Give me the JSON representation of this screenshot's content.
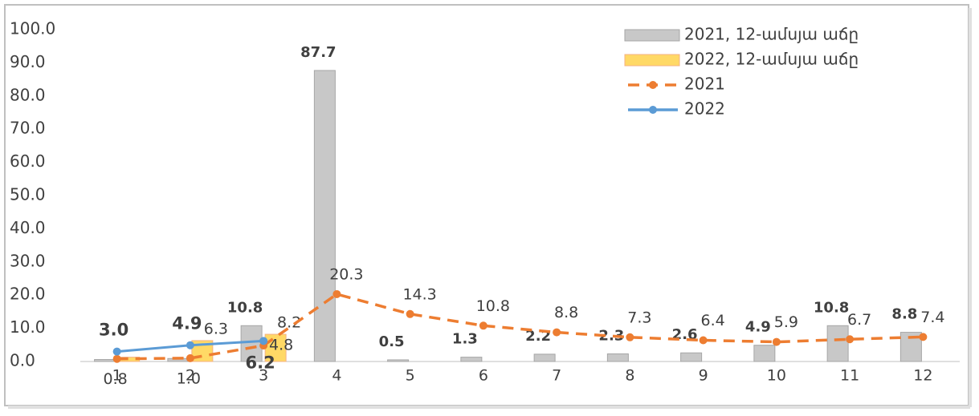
{
  "chart_data": {
    "type": "bar",
    "categories": [
      "1",
      "2",
      "3",
      "4",
      "5",
      "6",
      "7",
      "8",
      "9",
      "10",
      "11",
      "12"
    ],
    "series": [
      {
        "name": "2021, 12-ամսյա աճը",
        "kind": "bar",
        "color": "#c8c8c8",
        "label_color": "#404040",
        "values": [
          0.6,
          0.9,
          10.8,
          87.7,
          0.5,
          1.3,
          2.2,
          2.3,
          2.6,
          4.9,
          10.8,
          8.8
        ],
        "value_labels": [
          null,
          null,
          "10.8",
          "87.7",
          "0.5",
          "1.3",
          "2.2",
          "2.3",
          "2.6",
          "4.9",
          "10.8",
          "8.8"
        ]
      },
      {
        "name": "2022, 12-ամսյա աճը",
        "kind": "bar",
        "color": "#ffd966",
        "label_color": "#404040",
        "values": [
          1.3,
          6.3,
          8.2,
          null,
          null,
          null,
          null,
          null,
          null,
          null,
          null,
          null
        ],
        "value_labels": [
          null,
          "6.3",
          "8.2",
          null,
          null,
          null,
          null,
          null,
          null,
          null,
          null,
          null
        ]
      },
      {
        "name": "2021",
        "kind": "line",
        "dashed": true,
        "color": "#ed7d31",
        "label_color": "#ed7d31",
        "values": [
          0.8,
          1.0,
          4.8,
          20.3,
          14.3,
          10.8,
          8.8,
          7.3,
          6.4,
          5.9,
          6.7,
          7.4
        ],
        "value_labels": [
          "0.8",
          "1.0",
          "4.8",
          "20.3",
          "14.3",
          "10.8",
          "8.8",
          "7.3",
          "6.4",
          "5.9",
          "6.7",
          "7.4"
        ]
      },
      {
        "name": "2022",
        "kind": "line",
        "dashed": false,
        "color": "#5b9bd5",
        "label_color": "#4472c4",
        "values": [
          3.0,
          4.9,
          6.2,
          null,
          null,
          null,
          null,
          null,
          null,
          null,
          null,
          null
        ],
        "value_labels": [
          "3.0",
          "4.9",
          "6.2",
          null,
          null,
          null,
          null,
          null,
          null,
          null,
          null,
          null
        ]
      }
    ],
    "ylim": [
      0,
      100
    ],
    "yticks": [
      {
        "value": 0,
        "label": "0.0"
      },
      {
        "value": 10,
        "label": "10.0"
      },
      {
        "value": 20,
        "label": "20.0"
      },
      {
        "value": 30,
        "label": "30.0"
      },
      {
        "value": 40,
        "label": "40.0"
      },
      {
        "value": 50,
        "label": "50.0"
      },
      {
        "value": 60,
        "label": "60.0"
      },
      {
        "value": 70,
        "label": "70.0"
      },
      {
        "value": 80,
        "label": "80.0"
      },
      {
        "value": 90,
        "label": "90.0"
      },
      {
        "value": 100,
        "label": "100.0"
      }
    ],
    "grid": false,
    "legend": "upper right"
  }
}
